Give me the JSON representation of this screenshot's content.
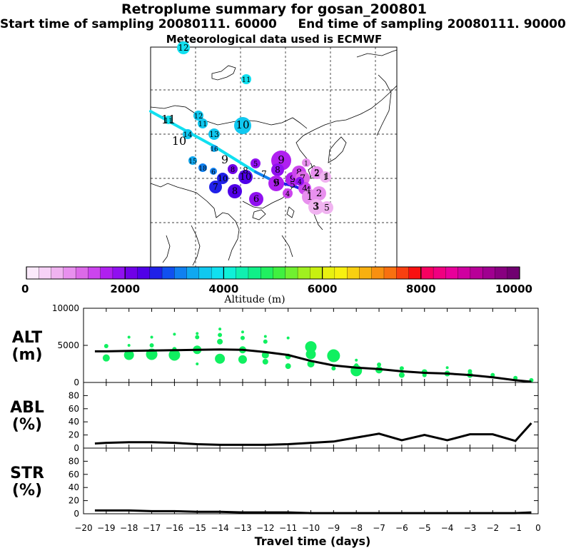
{
  "title": "Retroplume summary for gosan_200801",
  "start_label": "Start time of sampling 20080111. 60000",
  "end_label": "End time of sampling 20080111. 90000",
  "met_label": "Meteorological data used is ECMWF",
  "colorbar": {
    "label": "Altitude (m)",
    "ticks": [
      "0",
      "2000",
      "4000",
      "6000",
      "8000",
      "10000"
    ],
    "colors": [
      "#fbeafb",
      "#f7d2f7",
      "#f0b3f0",
      "#e890ee",
      "#dc6ae8",
      "#cc44ee",
      "#b020f0",
      "#9010f0",
      "#7000e8",
      "#5000e8",
      "#2020e8",
      "#1050f0",
      "#1080f0",
      "#10a8f0",
      "#10c8f0",
      "#10e0f0",
      "#10f0d8",
      "#10f0b0",
      "#10f088",
      "#20f060",
      "#40f040",
      "#70f030",
      "#a0f020",
      "#c8f010",
      "#e8f010",
      "#f8f010",
      "#f8d010",
      "#f8b010",
      "#f89010",
      "#f87010",
      "#f84010",
      "#f81010",
      "#f80060",
      "#f00080",
      "#e8009a",
      "#d000a0",
      "#b80098",
      "#a00090",
      "#880080",
      "#700070"
    ]
  },
  "map": {
    "points": [
      {
        "label": "12",
        "color": "#10e0f0"
      },
      {
        "label": "11",
        "color": "#10e0f0"
      },
      {
        "label": "11",
        "color": "#10e0f0"
      },
      {
        "label": "10",
        "color": "#10c8f0"
      },
      {
        "label": "12",
        "color": "#10c8f0"
      },
      {
        "label": "11",
        "color": "#10c8f0"
      },
      {
        "label": "14",
        "color": "#10c8f0"
      },
      {
        "label": "13",
        "color": "#10c8f0"
      },
      {
        "label": "15",
        "color": "#10a8f0"
      },
      {
        "label": "16",
        "color": "#10a8f0"
      },
      {
        "label": "18",
        "color": "#1080f0"
      },
      {
        "label": "6",
        "color": "#1080f0"
      },
      {
        "label": "10",
        "color": "#2020e8"
      },
      {
        "label": "7",
        "color": "#2020e8"
      },
      {
        "label": "8",
        "color": "#5000e8"
      },
      {
        "label": "10",
        "color": "#5000e8"
      },
      {
        "label": "8",
        "color": "#7000e8"
      },
      {
        "label": "6",
        "color": "#9010f0"
      },
      {
        "label": "9",
        "color": "#b020f0"
      },
      {
        "label": "8",
        "color": "#9010f0"
      },
      {
        "label": "5",
        "color": "#9010f0"
      },
      {
        "label": "9",
        "color": "#b020f0"
      },
      {
        "label": "8",
        "color": "#cc44ee"
      },
      {
        "label": "4",
        "color": "#cc44ee"
      },
      {
        "label": "7",
        "color": "#dc6ae8"
      },
      {
        "label": "2",
        "color": "#e890ee"
      },
      {
        "label": "1",
        "color": "#f0b3f0"
      },
      {
        "label": "4",
        "color": "#cc44ee"
      },
      {
        "label": "1",
        "color": "#e890ee"
      },
      {
        "label": "2",
        "color": "#e890ee"
      },
      {
        "label": "3",
        "color": "#f0b3f0"
      },
      {
        "label": "5",
        "color": "#f0b3f0"
      },
      {
        "label": "9",
        "color": "#b020f0"
      },
      {
        "label": "4",
        "color": "#9010f0"
      },
      {
        "label": "1",
        "color": "#e890ee"
      }
    ],
    "track_labels": [
      "11",
      "10",
      "9",
      "8",
      "7",
      "6",
      "5",
      "4",
      "3",
      "2",
      "1"
    ]
  },
  "chart_data": [
    {
      "type": "scatter",
      "title": "ALT (m)",
      "ylabel": "ALT\n(m)",
      "ylim": [
        0,
        10000
      ],
      "yticks": [
        "10000",
        "5000",
        "0"
      ],
      "xlim": [
        -20,
        0
      ],
      "series": [
        {
          "name": "median_altitude",
          "x": [
            -19.5,
            -19,
            -18,
            -17,
            -16,
            -15,
            -14,
            -13,
            -12,
            -11,
            -10,
            -9,
            -8,
            -7,
            -6,
            -5,
            -4,
            -3,
            -2,
            -1,
            -0.3
          ],
          "values": [
            4200,
            4200,
            4250,
            4300,
            4350,
            4400,
            4450,
            4400,
            4100,
            3700,
            2900,
            2300,
            2000,
            1800,
            1500,
            1300,
            1200,
            1000,
            700,
            300,
            100
          ]
        },
        {
          "name": "plume_samples",
          "x": [
            -19,
            -19,
            -18,
            -18,
            -18,
            -17,
            -17,
            -17,
            -16,
            -16,
            -16,
            -15,
            -15,
            -15,
            -15,
            -14,
            -14,
            -14,
            -14,
            -13,
            -13,
            -13,
            -13,
            -12,
            -12,
            -12,
            -12,
            -11,
            -11,
            -11,
            -10,
            -10,
            -10,
            -9,
            -9,
            -9,
            -8,
            -8,
            -8,
            -7,
            -7,
            -6,
            -6,
            -5,
            -5,
            -4,
            -4,
            -3,
            -3,
            -2,
            -1,
            -0.3
          ],
          "values": [
            4900,
            3300,
            6100,
            5000,
            3700,
            6100,
            5000,
            3800,
            6500,
            4500,
            3700,
            6600,
            6100,
            4400,
            2500,
            7200,
            6400,
            5500,
            3200,
            6800,
            6000,
            4400,
            3100,
            6200,
            5500,
            3700,
            2800,
            6000,
            3500,
            2200,
            4800,
            2500,
            3800,
            3600,
            1900,
            3600,
            3000,
            2300,
            1600,
            1700,
            2400,
            1000,
            1900,
            1000,
            1400,
            2000,
            1200,
            1500,
            1000,
            1000,
            600,
            300
          ],
          "sizes": [
            3,
            5,
            2,
            2,
            7,
            2,
            3,
            8,
            2,
            3,
            8,
            2,
            3,
            6,
            2,
            2,
            3,
            4,
            7,
            2,
            3,
            5,
            6,
            2,
            3,
            5,
            4,
            2,
            4,
            4,
            8,
            5,
            7,
            2,
            3,
            9,
            2,
            3,
            8,
            5,
            3,
            4,
            3,
            3,
            4,
            2,
            4,
            3,
            4,
            3,
            3,
            3
          ]
        }
      ],
      "marker_color": "#10f060"
    },
    {
      "type": "line",
      "title": "ABL (%)",
      "ylabel": "ABL\n(%)",
      "ylim": [
        0,
        100
      ],
      "yticks": [
        "80",
        "60",
        "40",
        "20",
        "0"
      ],
      "xlim": [
        -20,
        0
      ],
      "x": [
        -19.5,
        -19,
        -18,
        -17,
        -16,
        -15,
        -14,
        -13,
        -12,
        -11,
        -10,
        -9,
        -8,
        -7,
        -6,
        -5,
        -4,
        -3,
        -2,
        -1,
        -0.3
      ],
      "values": [
        7,
        8,
        9,
        9,
        8,
        6,
        5,
        5,
        5,
        6,
        8,
        10,
        16,
        22,
        12,
        20,
        12,
        21,
        21,
        11,
        38
      ]
    },
    {
      "type": "line",
      "title": "STR (%)",
      "ylabel": "STR\n(%)",
      "ylim": [
        0,
        100
      ],
      "yticks": [
        "80",
        "60",
        "40",
        "20",
        "0"
      ],
      "xlim": [
        -20,
        0
      ],
      "xlabel": "Travel time (days)",
      "xticks": [
        "−20",
        "−19",
        "−18",
        "−17",
        "−16",
        "−15",
        "−14",
        "−13",
        "−12",
        "−11",
        "−10",
        "−9",
        "−8",
        "−7",
        "−6",
        "−5",
        "−4",
        "−3",
        "−2",
        "−1",
        "0"
      ],
      "x": [
        -19.5,
        -19,
        -18,
        -17,
        -16,
        -15,
        -14,
        -13,
        -12,
        -11,
        -10,
        -9,
        -8,
        -7,
        -6,
        -5,
        -4,
        -3,
        -2,
        -1,
        -0.3
      ],
      "values": [
        5,
        5,
        5,
        4,
        4,
        3,
        3,
        2,
        2,
        2,
        1,
        1,
        1,
        1,
        1,
        1,
        1,
        1,
        1,
        1,
        2
      ]
    }
  ]
}
